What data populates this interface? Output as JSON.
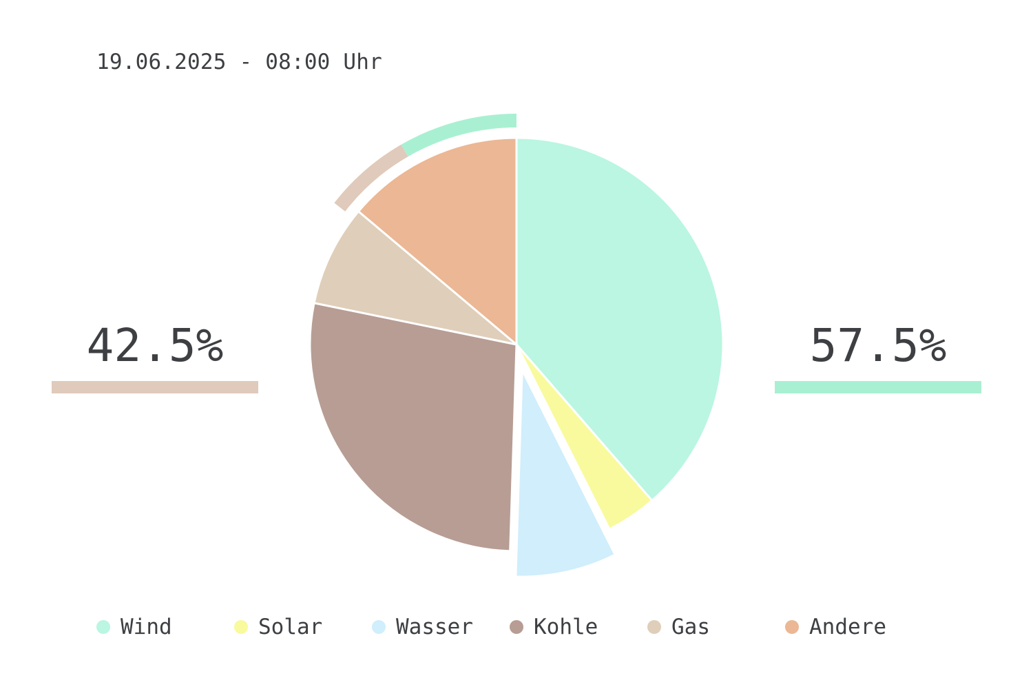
{
  "timestamp": "19.06.2025 - 08:00 Uhr",
  "left_summary": {
    "value": "42.5%",
    "color": "#e0cabb"
  },
  "right_summary": {
    "value": "57.5%",
    "color": "#a9f0d3"
  },
  "chart_data": {
    "type": "pie",
    "title": "",
    "start_angle_deg": 0,
    "direction": "clockwise",
    "slices": [
      {
        "label": "Wind",
        "value": 39,
        "color": "#baf6e1",
        "exploded": false
      },
      {
        "label": "Solar",
        "value": 4,
        "color": "#f8fa9d",
        "exploded": false
      },
      {
        "label": "Wasser",
        "value": 8,
        "color": "#d0eefc",
        "exploded": true
      },
      {
        "label": "Kohle",
        "value": 28,
        "color": "#b79d94",
        "exploded": false
      },
      {
        "label": "Gas",
        "value": 8,
        "color": "#dfceb9",
        "exploded": false
      },
      {
        "label": "Andere",
        "value": 14,
        "color": "#ebb794",
        "exploded": false
      }
    ],
    "outer_arcs": [
      {
        "group": "renewable",
        "percent": 57.5,
        "color": "#a9f0d3"
      },
      {
        "group": "fossil",
        "percent": 42.5,
        "color": "#e0cabb"
      }
    ],
    "legend_position": "bottom"
  }
}
